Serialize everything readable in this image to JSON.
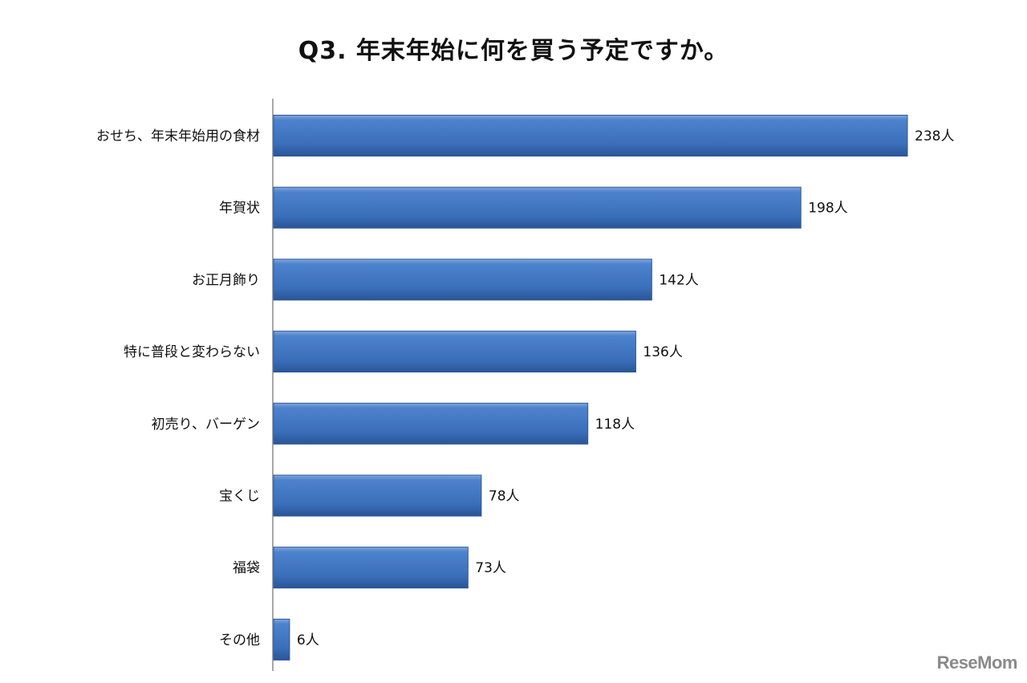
{
  "chart_data": {
    "type": "bar",
    "orientation": "horizontal",
    "title": "Q3. 年末年始に何を買う予定ですか。",
    "categories": [
      "おせち、年末年始用の食材",
      "年賀状",
      "お正月飾り",
      "特に普段と変わらない",
      "初売り、バーゲン",
      "宝くじ",
      "福袋",
      "その他"
    ],
    "values": [
      238,
      198,
      142,
      136,
      118,
      78,
      73,
      6
    ],
    "unit": "人",
    "xlabel": "",
    "ylabel": "",
    "xlim": [
      0,
      240
    ],
    "grid": false,
    "bar_color": "#3f75c0"
  },
  "watermark": "ReseMom"
}
